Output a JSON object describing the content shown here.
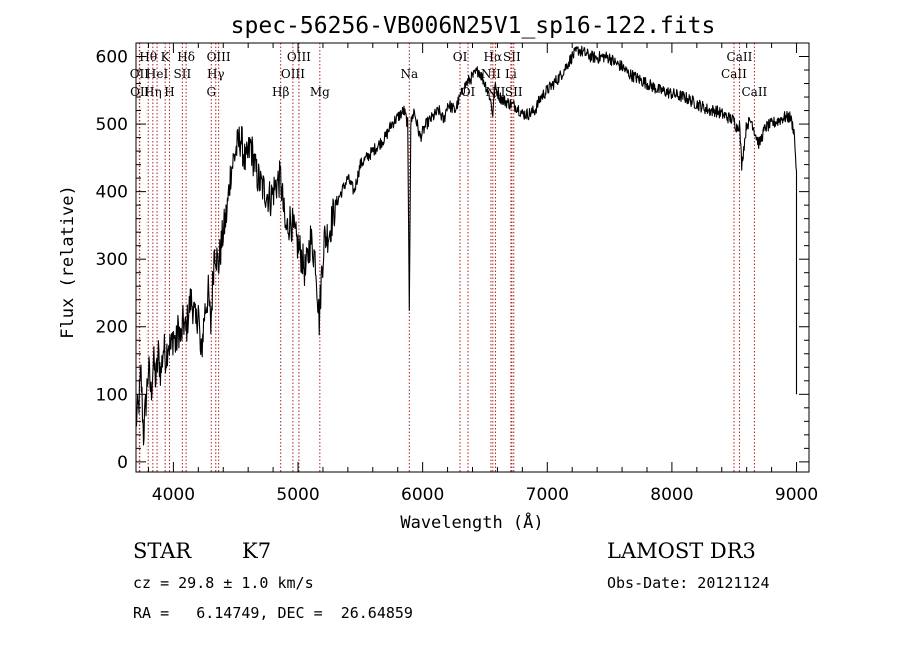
{
  "chart_data": {
    "type": "line",
    "title": "spec-56256-VB006N25V1_sp16-122.fits",
    "xlabel": "Wavelength (Å)",
    "ylabel": "Flux (relative)",
    "xlim": [
      3700,
      9100
    ],
    "ylim": [
      -15,
      620
    ],
    "x_ticks": [
      4000,
      5000,
      6000,
      7000,
      8000,
      9000
    ],
    "y_ticks": [
      0,
      100,
      200,
      300,
      400,
      500,
      600
    ],
    "series": [
      {
        "name": "flux",
        "x": [
          3700,
          3720,
          3740,
          3760,
          3780,
          3800,
          3820,
          3840,
          3860,
          3880,
          3900,
          3920,
          3940,
          3960,
          3980,
          4000,
          4020,
          4040,
          4060,
          4080,
          4100,
          4120,
          4140,
          4160,
          4180,
          4200,
          4220,
          4250,
          4280,
          4300,
          4330,
          4360,
          4400,
          4430,
          4460,
          4500,
          4540,
          4580,
          4620,
          4660,
          4700,
          4740,
          4780,
          4820,
          4860,
          4900,
          4940,
          4980,
          5020,
          5060,
          5100,
          5140,
          5170,
          5190,
          5210,
          5250,
          5300,
          5350,
          5400,
          5450,
          5500,
          5550,
          5600,
          5650,
          5700,
          5750,
          5800,
          5850,
          5880,
          5893,
          5905,
          5930,
          5980,
          6030,
          6080,
          6130,
          6170,
          6200,
          6260,
          6300,
          6350,
          6400,
          6450,
          6500,
          6540,
          6563,
          6580,
          6620,
          6650,
          6700,
          6760,
          6800,
          6850,
          6900,
          6950,
          7000,
          7050,
          7100,
          7150,
          7200,
          7250,
          7300,
          7350,
          7400,
          7450,
          7500,
          7550,
          7600,
          7650,
          7700,
          7750,
          7800,
          7850,
          7900,
          7950,
          8000,
          8050,
          8100,
          8150,
          8200,
          8250,
          8300,
          8350,
          8400,
          8450,
          8498,
          8520,
          8542,
          8560,
          8600,
          8640,
          8662,
          8700,
          8750,
          8800,
          8850,
          8900,
          8950,
          8980,
          9000
        ],
        "values": [
          60,
          80,
          130,
          40,
          90,
          140,
          100,
          150,
          120,
          160,
          130,
          170,
          155,
          180,
          165,
          190,
          170,
          200,
          180,
          210,
          190,
          220,
          240,
          230,
          200,
          230,
          150,
          220,
          250,
          200,
          320,
          290,
          340,
          370,
          430,
          460,
          480,
          440,
          470,
          430,
          410,
          400,
          390,
          410,
          420,
          340,
          360,
          330,
          310,
          280,
          330,
          300,
          210,
          280,
          330,
          340,
          380,
          400,
          420,
          400,
          440,
          450,
          460,
          470,
          480,
          500,
          510,
          520,
          500,
          230,
          500,
          520,
          480,
          500,
          510,
          520,
          505,
          530,
          520,
          540,
          560,
          570,
          580,
          560,
          540,
          515,
          555,
          540,
          535,
          530,
          525,
          515,
          515,
          520,
          540,
          550,
          560,
          570,
          585,
          600,
          610,
          605,
          600,
          598,
          600,
          598,
          590,
          585,
          575,
          570,
          565,
          560,
          555,
          550,
          548,
          545,
          542,
          540,
          535,
          530,
          525,
          520,
          520,
          515,
          510,
          505,
          495,
          500,
          440,
          500,
          505,
          490,
          470,
          495,
          500,
          505,
          510,
          510,
          490,
          430
        ]
      }
    ],
    "line_markers": [
      {
        "wavelength": 3727,
        "label": "OII",
        "row": 2
      },
      {
        "wavelength": 3730,
        "label": "OII",
        "row": 3
      },
      {
        "wavelength": 3798,
        "label": "Hθ",
        "row": 1
      },
      {
        "wavelength": 3835,
        "label": "Hη",
        "row": 3
      },
      {
        "wavelength": 3869,
        "label": "HeI",
        "row": 2
      },
      {
        "wavelength": 3934,
        "label": "K",
        "row": 1
      },
      {
        "wavelength": 3969,
        "label": "H",
        "row": 3
      },
      {
        "wavelength": 4072,
        "label": "SII",
        "row": 2
      },
      {
        "wavelength": 4102,
        "label": "Hδ",
        "row": 1
      },
      {
        "wavelength": 4304,
        "label": "G",
        "row": 3
      },
      {
        "wavelength": 4340,
        "label": "Hγ",
        "row": 2
      },
      {
        "wavelength": 4363,
        "label": "OIII",
        "row": 1
      },
      {
        "wavelength": 4861,
        "label": "Hβ",
        "row": 3
      },
      {
        "wavelength": 4959,
        "label": "OIII",
        "row": 2
      },
      {
        "wavelength": 5007,
        "label": "OIII",
        "row": 1
      },
      {
        "wavelength": 5175,
        "label": "Mg",
        "row": 3
      },
      {
        "wavelength": 5893,
        "label": "Na",
        "row": 2
      },
      {
        "wavelength": 6300,
        "label": "OI",
        "row": 1
      },
      {
        "wavelength": 6364,
        "label": "OI",
        "row": 3
      },
      {
        "wavelength": 6548,
        "label": "NII",
        "row": 2
      },
      {
        "wavelength": 6563,
        "label": "Hα",
        "row": 1
      },
      {
        "wavelength": 6584,
        "label": "NII",
        "row": 3
      },
      {
        "wavelength": 6708,
        "label": "Li",
        "row": 2
      },
      {
        "wavelength": 6716,
        "label": "SII",
        "row": 1
      },
      {
        "wavelength": 6731,
        "label": "SII",
        "row": 3
      },
      {
        "wavelength": 8498,
        "label": "CaII",
        "row": 2
      },
      {
        "wavelength": 8542,
        "label": "CaII",
        "row": 1
      },
      {
        "wavelength": 8662,
        "label": "CaII",
        "row": 3
      }
    ],
    "colors": {
      "spectrum": "#000000",
      "marker": "#b22222",
      "frame": "#000000"
    }
  },
  "info": {
    "class_label": "STAR",
    "subclass": "K7",
    "survey": "LAMOST DR3",
    "cz": "cz = 29.8 ± 1.0 km/s",
    "obs_date": "Obs-Date: 20121124",
    "coords": "RA =   6.14749, DEC =  26.64859"
  }
}
